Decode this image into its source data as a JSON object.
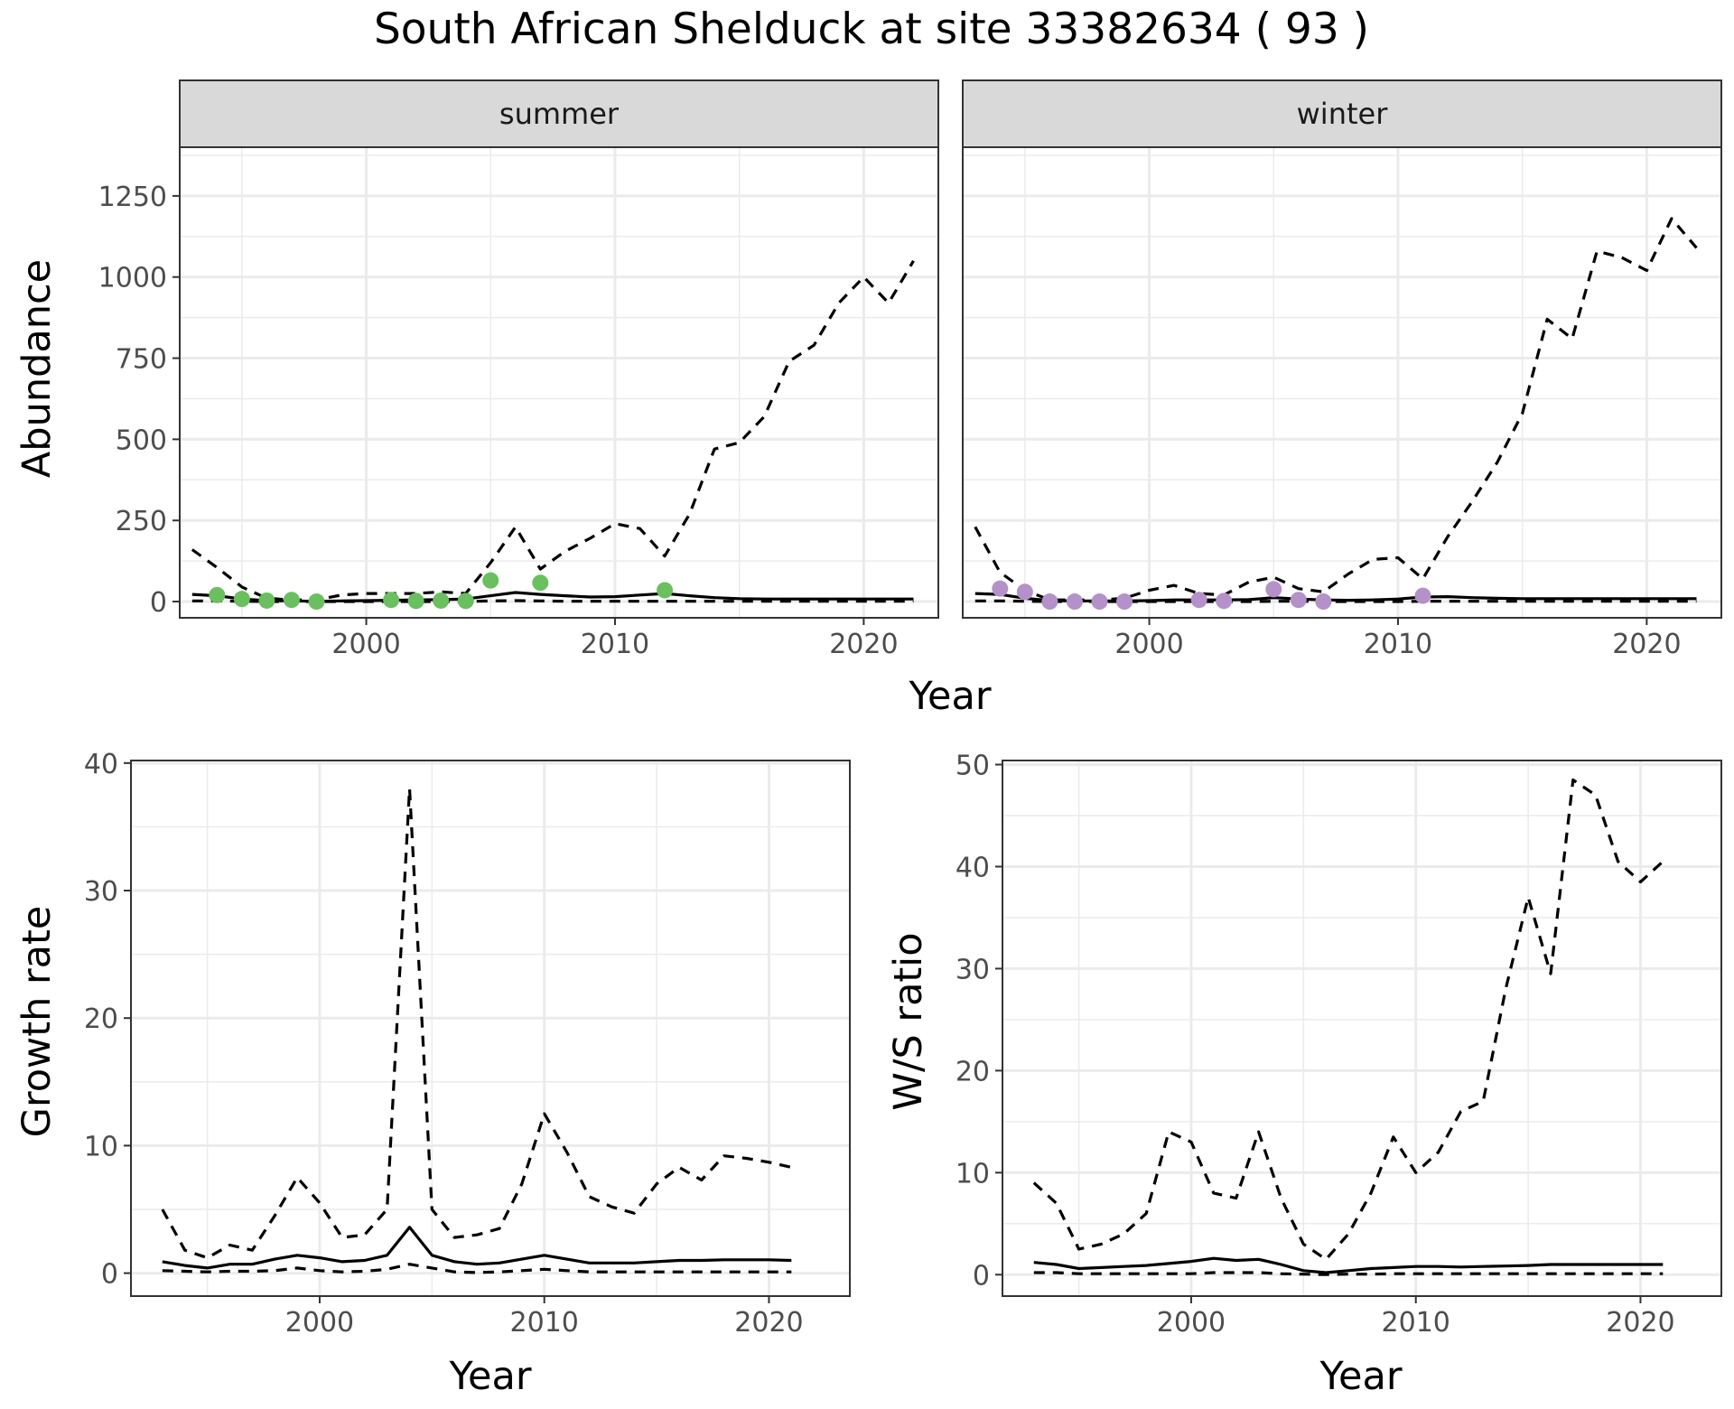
{
  "figure_title": "South African Shelduck at site 33382634 ( 93 )",
  "colors": {
    "summer_points": "#6abf5e",
    "winter_points": "#b491c8",
    "lines": "#000000",
    "strip": "#d9d9d9"
  },
  "chart_data": [
    {
      "id": "abundance-summer",
      "type": "line",
      "strip_label": "summer",
      "xlabel": "Year",
      "ylabel": "Abundance",
      "xlim": [
        1992.5,
        2023.0
      ],
      "ylim": [
        -50,
        1400
      ],
      "x_ticks": [
        2000,
        2010,
        2020
      ],
      "y_ticks": [
        0,
        250,
        500,
        750,
        1000,
        1250
      ],
      "series": [
        {
          "name": "upper",
          "style": "dashed",
          "x": [
            1993,
            1994,
            1995,
            1996,
            1997,
            1998,
            1999,
            2000,
            2001,
            2002,
            2003,
            2004,
            2005,
            2006,
            2007,
            2008,
            2009,
            2010,
            2011,
            2012,
            2013,
            2014,
            2015,
            2016,
            2017,
            2018,
            2019,
            2020,
            2021,
            2022
          ],
          "values": [
            160,
            105,
            45,
            10,
            5,
            5,
            20,
            25,
            25,
            25,
            30,
            25,
            120,
            230,
            100,
            155,
            195,
            240,
            225,
            140,
            270,
            470,
            490,
            570,
            740,
            790,
            920,
            1000,
            920,
            1050
          ]
        },
        {
          "name": "mean",
          "style": "solid",
          "x": [
            1993,
            1994,
            1995,
            1996,
            1997,
            1998,
            1999,
            2000,
            2001,
            2002,
            2003,
            2004,
            2005,
            2006,
            2007,
            2008,
            2009,
            2010,
            2011,
            2012,
            2013,
            2014,
            2015,
            2016,
            2017,
            2018,
            2019,
            2020,
            2021,
            2022
          ],
          "values": [
            22,
            18,
            8,
            3,
            2,
            1,
            2,
            3,
            4,
            5,
            6,
            8,
            18,
            28,
            22,
            18,
            14,
            15,
            20,
            25,
            18,
            12,
            9,
            8,
            8,
            8,
            8,
            8,
            8,
            8
          ]
        },
        {
          "name": "lower",
          "style": "dashed",
          "x": [
            1993,
            1994,
            1995,
            1996,
            1997,
            1998,
            1999,
            2000,
            2001,
            2002,
            2003,
            2004,
            2005,
            2006,
            2007,
            2008,
            2009,
            2010,
            2011,
            2012,
            2013,
            2014,
            2015,
            2016,
            2017,
            2018,
            2019,
            2020,
            2021,
            2022
          ],
          "values": [
            2,
            2,
            1,
            0,
            0,
            0,
            0,
            0,
            0,
            0,
            0,
            0,
            2,
            3,
            2,
            1,
            1,
            1,
            1,
            1,
            1,
            1,
            1,
            1,
            1,
            1,
            1,
            1,
            1,
            1
          ]
        }
      ],
      "points": {
        "name": "observed counts",
        "x": [
          1994,
          1995,
          1996,
          1997,
          1998,
          2001,
          2002,
          2003,
          2004,
          2005,
          2007,
          2012
        ],
        "values": [
          20,
          8,
          3,
          5,
          0,
          5,
          2,
          3,
          2,
          65,
          58,
          35
        ]
      }
    },
    {
      "id": "abundance-winter",
      "type": "line",
      "strip_label": "winter",
      "xlabel": "Year",
      "ylabel": "Abundance",
      "xlim": [
        1992.5,
        2023.0
      ],
      "ylim": [
        -50,
        1400
      ],
      "x_ticks": [
        2000,
        2010,
        2020
      ],
      "y_ticks": [
        0,
        250,
        500,
        750,
        1000,
        1250
      ],
      "series": [
        {
          "name": "upper",
          "style": "dashed",
          "x": [
            1993,
            1994,
            1995,
            1996,
            1997,
            1998,
            1999,
            2000,
            2001,
            2002,
            2003,
            2004,
            2005,
            2006,
            2007,
            2008,
            2009,
            2010,
            2011,
            2012,
            2013,
            2014,
            2015,
            2016,
            2017,
            2018,
            2019,
            2020,
            2021,
            2022
          ],
          "values": [
            230,
            90,
            35,
            5,
            5,
            5,
            10,
            35,
            50,
            25,
            20,
            60,
            75,
            40,
            30,
            85,
            130,
            135,
            70,
            200,
            310,
            430,
            580,
            870,
            810,
            1080,
            1060,
            1020,
            1180,
            1090
          ]
        },
        {
          "name": "mean",
          "style": "solid",
          "x": [
            1993,
            1994,
            1995,
            1996,
            1997,
            1998,
            1999,
            2000,
            2001,
            2002,
            2003,
            2004,
            2005,
            2006,
            2007,
            2008,
            2009,
            2010,
            2011,
            2012,
            2013,
            2014,
            2015,
            2016,
            2017,
            2018,
            2019,
            2020,
            2021,
            2022
          ],
          "values": [
            25,
            22,
            10,
            3,
            2,
            2,
            2,
            3,
            5,
            5,
            5,
            6,
            12,
            8,
            5,
            4,
            5,
            8,
            14,
            15,
            12,
            10,
            9,
            9,
            9,
            9,
            9,
            9,
            9,
            9
          ]
        },
        {
          "name": "lower",
          "style": "dashed",
          "x": [
            1993,
            1994,
            1995,
            1996,
            1997,
            1998,
            1999,
            2000,
            2001,
            2002,
            2003,
            2004,
            2005,
            2006,
            2007,
            2008,
            2009,
            2010,
            2011,
            2012,
            2013,
            2014,
            2015,
            2016,
            2017,
            2018,
            2019,
            2020,
            2021,
            2022
          ],
          "values": [
            2,
            2,
            1,
            0,
            0,
            0,
            0,
            0,
            0,
            0,
            0,
            0,
            1,
            1,
            0,
            0,
            0,
            0,
            1,
            1,
            1,
            1,
            1,
            1,
            1,
            1,
            1,
            1,
            1,
            1
          ]
        }
      ],
      "points": {
        "name": "observed counts",
        "x": [
          1994,
          1995,
          1996,
          1997,
          1998,
          1999,
          2002,
          2003,
          2005,
          2006,
          2007,
          2011
        ],
        "values": [
          40,
          30,
          0,
          0,
          0,
          0,
          5,
          2,
          38,
          5,
          0,
          18
        ]
      }
    },
    {
      "id": "growth-rate",
      "type": "line",
      "xlabel": "Year",
      "ylabel": "Growth rate",
      "xlim": [
        1991.6,
        2023.6
      ],
      "ylim": [
        -1.8,
        40.2
      ],
      "x_ticks": [
        2000,
        2010,
        2020
      ],
      "y_ticks": [
        0,
        10,
        20,
        30,
        40
      ],
      "series": [
        {
          "name": "upper",
          "style": "dashed",
          "x": [
            1993,
            1994,
            1995,
            1996,
            1997,
            1998,
            1999,
            2000,
            2001,
            2002,
            2003,
            2004,
            2005,
            2006,
            2007,
            2008,
            2009,
            2010,
            2011,
            2012,
            2013,
            2014,
            2015,
            2016,
            2017,
            2018,
            2019,
            2020,
            2021
          ],
          "values": [
            5,
            1.8,
            1.2,
            2.2,
            1.8,
            4.5,
            7.5,
            5.5,
            2.8,
            3,
            5,
            38,
            5,
            2.8,
            3,
            3.5,
            7,
            12.5,
            9.5,
            6,
            5.2,
            4.7,
            7,
            8.3,
            7.3,
            9.2,
            9,
            8.7,
            8.3
          ]
        },
        {
          "name": "mean",
          "style": "solid",
          "x": [
            1993,
            1994,
            1995,
            1996,
            1997,
            1998,
            1999,
            2000,
            2001,
            2002,
            2003,
            2004,
            2005,
            2006,
            2007,
            2008,
            2009,
            2010,
            2011,
            2012,
            2013,
            2014,
            2015,
            2016,
            2017,
            2018,
            2019,
            2020,
            2021
          ],
          "values": [
            0.9,
            0.6,
            0.4,
            0.7,
            0.7,
            1.1,
            1.4,
            1.2,
            0.9,
            1,
            1.4,
            3.6,
            1.4,
            0.9,
            0.7,
            0.8,
            1.1,
            1.4,
            1.1,
            0.8,
            0.8,
            0.8,
            0.9,
            1,
            1,
            1.05,
            1.05,
            1.05,
            1
          ]
        },
        {
          "name": "lower",
          "style": "dashed",
          "x": [
            1993,
            1994,
            1995,
            1996,
            1997,
            1998,
            1999,
            2000,
            2001,
            2002,
            2003,
            2004,
            2005,
            2006,
            2007,
            2008,
            2009,
            2010,
            2011,
            2012,
            2013,
            2014,
            2015,
            2016,
            2017,
            2018,
            2019,
            2020,
            2021
          ],
          "values": [
            0.2,
            0.15,
            0.1,
            0.15,
            0.15,
            0.2,
            0.4,
            0.2,
            0.1,
            0.15,
            0.3,
            0.7,
            0.4,
            0.1,
            0.05,
            0.1,
            0.2,
            0.3,
            0.2,
            0.1,
            0.1,
            0.1,
            0.1,
            0.1,
            0.1,
            0.1,
            0.1,
            0.1,
            0.1
          ]
        }
      ]
    },
    {
      "id": "ws-ratio",
      "type": "line",
      "xlabel": "Year",
      "ylabel": "W/S ratio",
      "xlim": [
        1991.6,
        2023.6
      ],
      "ylim": [
        -2.1,
        50.4
      ],
      "x_ticks": [
        2000,
        2010,
        2020
      ],
      "y_ticks": [
        0,
        10,
        20,
        30,
        40,
        50
      ],
      "series": [
        {
          "name": "upper",
          "style": "dashed",
          "x": [
            1993,
            1994,
            1995,
            1996,
            1997,
            1998,
            1999,
            2000,
            2001,
            2002,
            2003,
            2004,
            2005,
            2006,
            2007,
            2008,
            2009,
            2010,
            2011,
            2012,
            2013,
            2014,
            2015,
            2016,
            2017,
            2018,
            2019,
            2020,
            2021
          ],
          "values": [
            9,
            7,
            2.5,
            3,
            4,
            6,
            14,
            13,
            8,
            7.5,
            14,
            7.5,
            3,
            1.5,
            4,
            8,
            13.5,
            10,
            12,
            16,
            17,
            28,
            37,
            29.5,
            48.5,
            47,
            40.5,
            38.5,
            40.5
          ]
        },
        {
          "name": "mean",
          "style": "solid",
          "x": [
            1993,
            1994,
            1995,
            1996,
            1997,
            1998,
            1999,
            2000,
            2001,
            2002,
            2003,
            2004,
            2005,
            2006,
            2007,
            2008,
            2009,
            2010,
            2011,
            2012,
            2013,
            2014,
            2015,
            2016,
            2017,
            2018,
            2019,
            2020,
            2021
          ],
          "values": [
            1.2,
            1,
            0.6,
            0.7,
            0.8,
            0.9,
            1.1,
            1.3,
            1.6,
            1.4,
            1.5,
            1,
            0.4,
            0.2,
            0.4,
            0.6,
            0.7,
            0.8,
            0.8,
            0.75,
            0.8,
            0.85,
            0.9,
            1,
            1,
            1,
            1,
            1,
            1
          ]
        },
        {
          "name": "lower",
          "style": "dashed",
          "x": [
            1993,
            1994,
            1995,
            1996,
            1997,
            1998,
            1999,
            2000,
            2001,
            2002,
            2003,
            2004,
            2005,
            2006,
            2007,
            2008,
            2009,
            2010,
            2011,
            2012,
            2013,
            2014,
            2015,
            2016,
            2017,
            2018,
            2019,
            2020,
            2021
          ],
          "values": [
            0.2,
            0.2,
            0.1,
            0.1,
            0.1,
            0.1,
            0.1,
            0.1,
            0.2,
            0.2,
            0.2,
            0.1,
            0.05,
            0.02,
            0.05,
            0.05,
            0.1,
            0.1,
            0.1,
            0.1,
            0.1,
            0.1,
            0.1,
            0.1,
            0.1,
            0.1,
            0.1,
            0.1,
            0.1
          ]
        }
      ]
    }
  ]
}
